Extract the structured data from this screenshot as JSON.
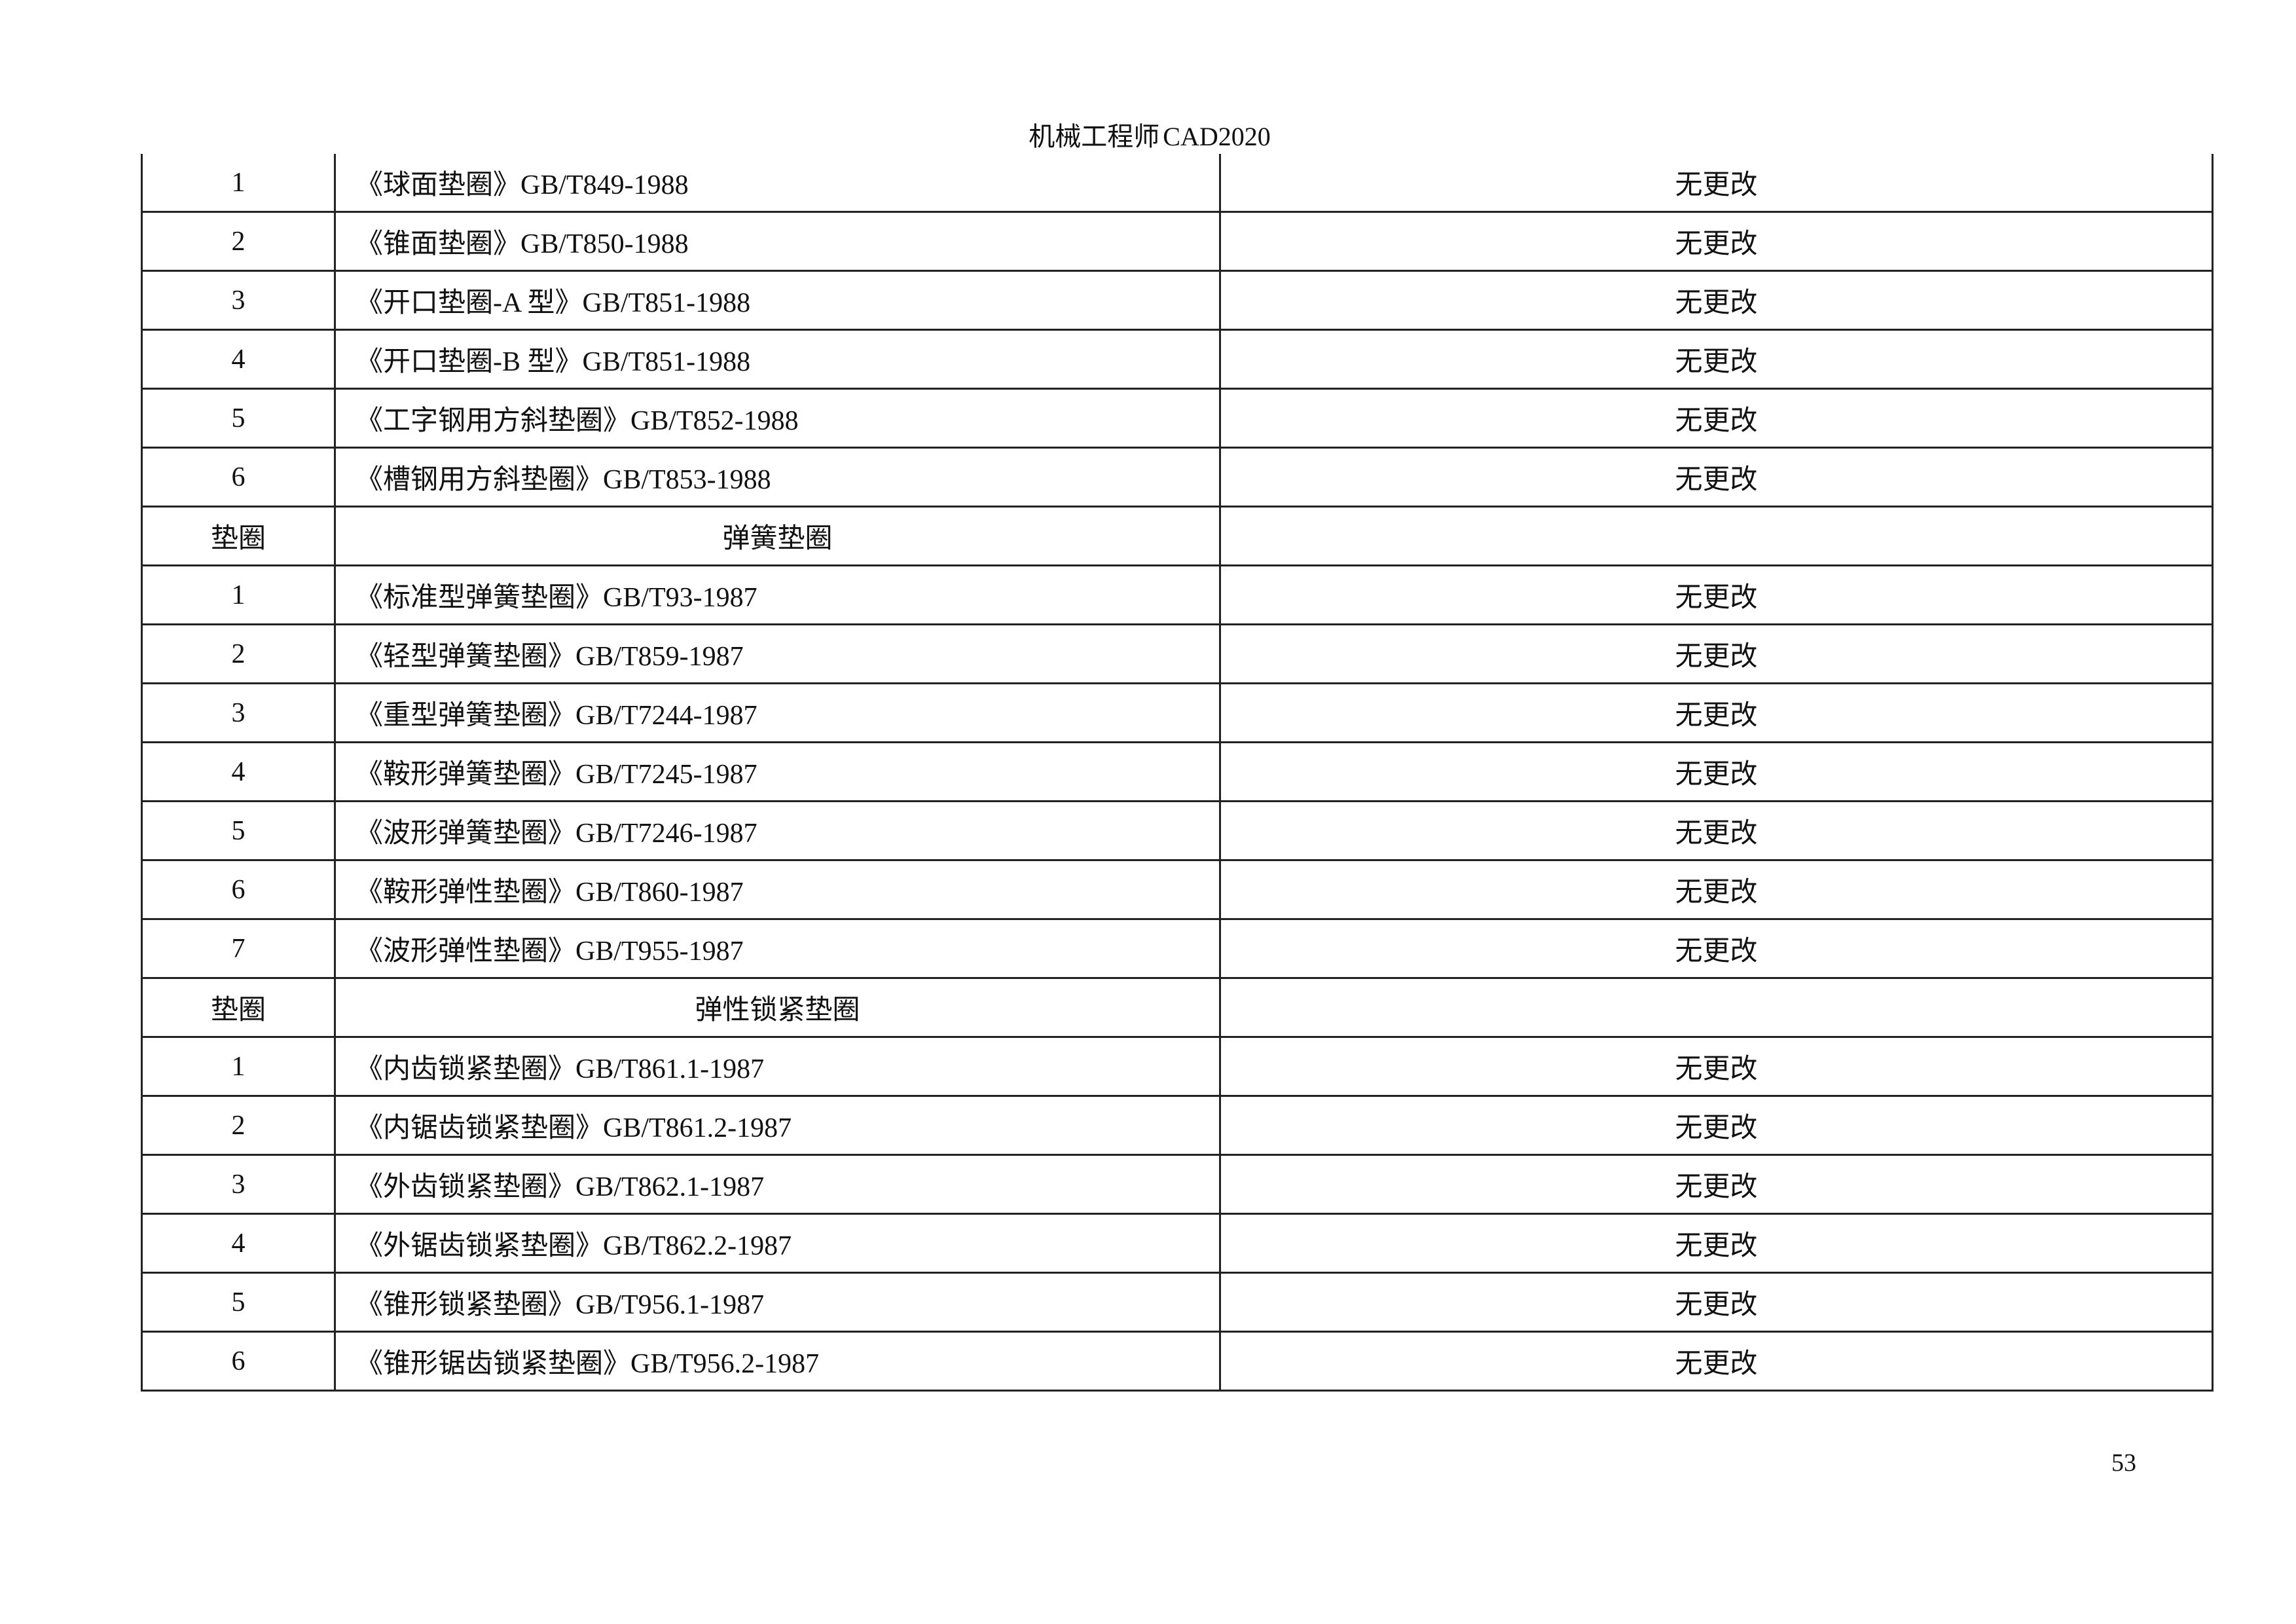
{
  "header": {
    "title": "机械工程师",
    "title_suffix": "CAD2020"
  },
  "rows": [
    {
      "no": "1",
      "name": "《球面垫圈》GB/T849-1988",
      "status": "无更改"
    },
    {
      "no": "2",
      "name": "《锥面垫圈》GB/T850-1988",
      "status": "无更改"
    },
    {
      "no": "3",
      "name": "《开口垫圈-A 型》GB/T851-1988",
      "status": "无更改"
    },
    {
      "no": "4",
      "name": "《开口垫圈-B 型》GB/T851-1988",
      "status": "无更改"
    },
    {
      "no": "5",
      "name": "《工字钢用方斜垫圈》GB/T852-1988",
      "status": "无更改"
    },
    {
      "no": "6",
      "name": "《槽钢用方斜垫圈》GB/T853-1988",
      "status": "无更改"
    },
    {
      "no": "垫圈",
      "name": "弹簧垫圈",
      "status": "",
      "section": true
    },
    {
      "no": "1",
      "name": "《标准型弹簧垫圈》GB/T93-1987",
      "status": "无更改"
    },
    {
      "no": "2",
      "name": "《轻型弹簧垫圈》GB/T859-1987",
      "status": "无更改"
    },
    {
      "no": "3",
      "name": "《重型弹簧垫圈》GB/T7244-1987",
      "status": "无更改"
    },
    {
      "no": "4",
      "name": "《鞍形弹簧垫圈》GB/T7245-1987",
      "status": "无更改"
    },
    {
      "no": "5",
      "name": "《波形弹簧垫圈》GB/T7246-1987",
      "status": "无更改"
    },
    {
      "no": "6",
      "name": "《鞍形弹性垫圈》GB/T860-1987",
      "status": "无更改"
    },
    {
      "no": "7",
      "name": "《波形弹性垫圈》GB/T955-1987",
      "status": "无更改"
    },
    {
      "no": "垫圈",
      "name": "弹性锁紧垫圈",
      "status": "",
      "section": true
    },
    {
      "no": "1",
      "name": "《内齿锁紧垫圈》GB/T861.1-1987",
      "status": "无更改"
    },
    {
      "no": "2",
      "name": "《内锯齿锁紧垫圈》GB/T861.2-1987",
      "status": "无更改"
    },
    {
      "no": "3",
      "name": "《外齿锁紧垫圈》GB/T862.1-1987",
      "status": "无更改"
    },
    {
      "no": "4",
      "name": "《外锯齿锁紧垫圈》GB/T862.2-1987",
      "status": "无更改"
    },
    {
      "no": "5",
      "name": "《锥形锁紧垫圈》GB/T956.1-1987",
      "status": "无更改"
    },
    {
      "no": "6",
      "name": "《锥形锯齿锁紧垫圈》GB/T956.2-1987",
      "status": "无更改"
    }
  ],
  "footer": {
    "page_number": "53"
  }
}
